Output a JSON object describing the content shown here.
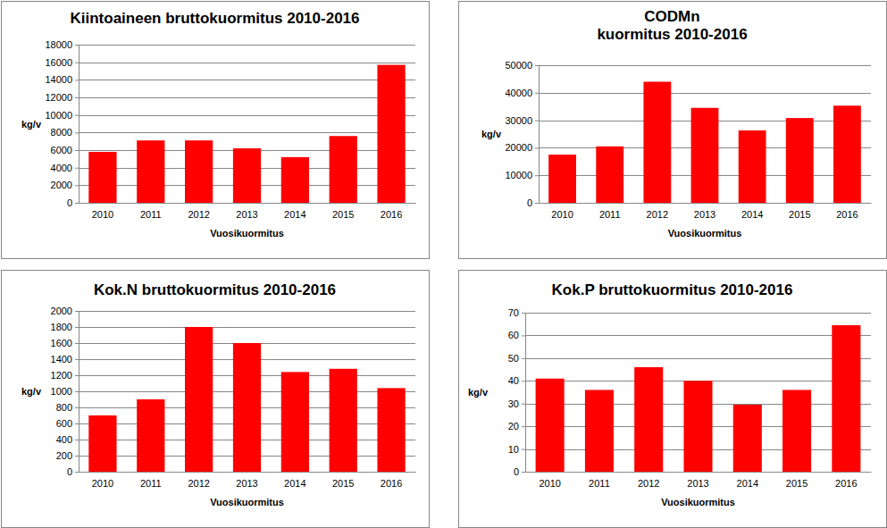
{
  "chart_data": [
    {
      "type": "bar",
      "title": "Kiintoaineen bruttokuormitus 2010-2016",
      "x_label": "Vuosikuormitus",
      "y_label": "kg/v",
      "categories": [
        "2010",
        "2011",
        "2012",
        "2013",
        "2014",
        "2015",
        "2016"
      ],
      "values": [
        5800,
        7100,
        7100,
        6200,
        5200,
        7600,
        15700
      ],
      "color": "#ff0000",
      "ylim": [
        0,
        18000
      ],
      "yticks": [
        0,
        2000,
        4000,
        6000,
        8000,
        10000,
        12000,
        14000,
        16000,
        18000
      ],
      "grid": true
    },
    {
      "type": "bar",
      "title": [
        "CODMn",
        "kuormitus 2010-2016"
      ],
      "x_label": "Vuosikuormitus",
      "y_label": "kg/v",
      "categories": [
        "2010",
        "2011",
        "2012",
        "2013",
        "2014",
        "2015",
        "2016"
      ],
      "values": [
        17500,
        20500,
        44000,
        34500,
        26300,
        30800,
        35300
      ],
      "color": "#ff0000",
      "ylim": [
        0,
        50000
      ],
      "yticks": [
        0,
        10000,
        20000,
        30000,
        40000,
        50000
      ],
      "grid": true
    },
    {
      "type": "bar",
      "title": "Kok.N bruttokuormitus 2010-2016",
      "x_label": "Vuosikuormitus",
      "y_label": "kg/v",
      "categories": [
        "2010",
        "2011",
        "2012",
        "2013",
        "2014",
        "2015",
        "2016"
      ],
      "values": [
        700,
        900,
        1800,
        1600,
        1240,
        1280,
        1040
      ],
      "color": "#ff0000",
      "ylim": [
        0,
        2000
      ],
      "yticks": [
        0,
        200,
        400,
        600,
        800,
        1000,
        1200,
        1400,
        1600,
        1800,
        2000
      ],
      "grid": true
    },
    {
      "type": "bar",
      "title": "Kok.P bruttokuormitus 2010-2016",
      "x_label": "Vuosikuormitus",
      "y_label": "kg/v",
      "categories": [
        "2010",
        "2011",
        "2012",
        "2013",
        "2014",
        "2015",
        "2016"
      ],
      "values": [
        41,
        36,
        46,
        40,
        29.5,
        36,
        64.5
      ],
      "color": "#ff0000",
      "ylim": [
        0,
        70
      ],
      "yticks": [
        0,
        10,
        20,
        30,
        40,
        50,
        60,
        70
      ],
      "grid": true
    }
  ]
}
